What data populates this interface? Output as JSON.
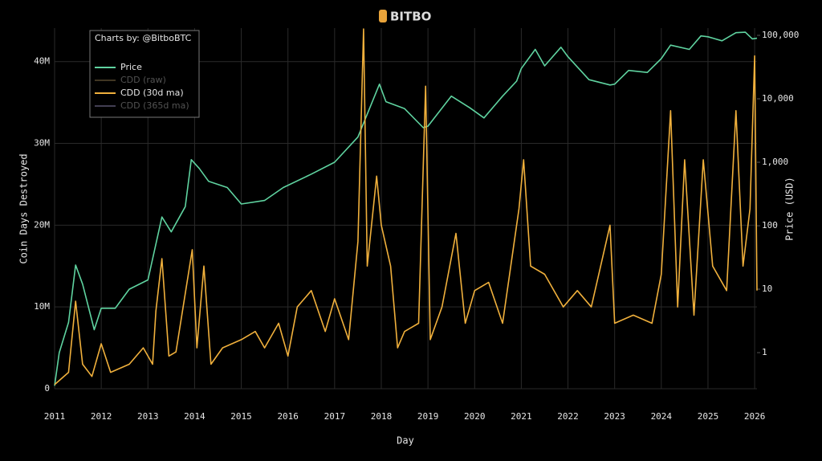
{
  "chart_data": {
    "type": "line",
    "logo": "BITBO",
    "credit": "Charts by: @BitboBTC",
    "xlabel": "Day",
    "ylabel": "Coin Days Destroyed",
    "y2label": "Price (USD)",
    "xlim": [
      2011,
      2026.05
    ],
    "xticks": [
      2011,
      2012,
      2013,
      2014,
      2015,
      2016,
      2017,
      2018,
      2019,
      2020,
      2021,
      2022,
      2023,
      2024,
      2025,
      2026
    ],
    "ylim": [
      0,
      44100000
    ],
    "yticks": [
      0,
      {
        "value": 10000000,
        "label": "10M"
      },
      {
        "value": 20000000,
        "label": "20M"
      },
      {
        "value": 30000000,
        "label": "30M"
      },
      {
        "value": 40000000,
        "label": "40M"
      }
    ],
    "y2lim": [
      0.27,
      130000
    ],
    "y2scale": "log",
    "y2ticks": [
      1,
      10,
      100,
      {
        "value": 1000,
        "label": "1,000"
      },
      {
        "value": 10000,
        "label": "10,000"
      },
      {
        "value": 100000,
        "label": "100,000"
      }
    ],
    "grid": true,
    "legend": "top-left",
    "series": [
      {
        "name": "Price",
        "color": "#5fd3a0",
        "axis": "y2",
        "x": [
          2011.0,
          2011.1,
          2011.3,
          2011.45,
          2011.6,
          2011.85,
          2012.0,
          2012.3,
          2012.6,
          2013.0,
          2013.3,
          2013.5,
          2013.8,
          2013.93,
          2014.1,
          2014.3,
          2014.7,
          2015.0,
          2015.5,
          2015.9,
          2016.5,
          2017.0,
          2017.5,
          2017.96,
          2018.1,
          2018.5,
          2018.9,
          2019.0,
          2019.5,
          2019.9,
          2020.2,
          2020.6,
          2020.9,
          2021.0,
          2021.3,
          2021.5,
          2021.85,
          2022.0,
          2022.45,
          2022.9,
          2023.0,
          2023.3,
          2023.7,
          2024.0,
          2024.2,
          2024.6,
          2024.85,
          2025.0,
          2025.3,
          2025.6,
          2025.8,
          2025.95,
          2026.05
        ],
        "values": [
          0.3,
          1,
          3,
          24,
          12,
          2.3,
          5,
          5,
          10,
          14,
          137,
          80,
          200,
          1100,
          800,
          500,
          400,
          220,
          250,
          400,
          650,
          1000,
          2500,
          17000,
          9000,
          7000,
          3500,
          3700,
          11000,
          7200,
          5000,
          11000,
          19000,
          30000,
          60000,
          33000,
          65000,
          46000,
          20000,
          16500,
          17000,
          28000,
          26000,
          43000,
          70000,
          60000,
          98000,
          95000,
          82000,
          110000,
          112000,
          88000,
          90000
        ]
      },
      {
        "name": "CDD (30d ma)",
        "color": "#f0b03c",
        "axis": "y",
        "x": [
          2011.0,
          2011.3,
          2011.45,
          2011.6,
          2011.8,
          2012.0,
          2012.2,
          2012.6,
          2012.9,
          2013.1,
          2013.17,
          2013.3,
          2013.45,
          2013.6,
          2013.95,
          2014.05,
          2014.2,
          2014.35,
          2014.6,
          2015.0,
          2015.3,
          2015.5,
          2015.8,
          2016.0,
          2016.2,
          2016.5,
          2016.8,
          2017.0,
          2017.3,
          2017.5,
          2017.62,
          2017.7,
          2017.9,
          2018.0,
          2018.2,
          2018.35,
          2018.5,
          2018.8,
          2018.95,
          2019.05,
          2019.3,
          2019.6,
          2019.8,
          2020.0,
          2020.3,
          2020.6,
          2020.95,
          2021.05,
          2021.2,
          2021.5,
          2021.9,
          2022.2,
          2022.5,
          2022.9,
          2023.0,
          2023.4,
          2023.8,
          2024.0,
          2024.2,
          2024.35,
          2024.5,
          2024.7,
          2024.9,
          2025.1,
          2025.4,
          2025.6,
          2025.75,
          2025.9,
          2026.0,
          2026.05
        ],
        "values": [
          500000,
          2000000,
          10700000,
          3000000,
          1500000,
          5500000,
          2000000,
          3000000,
          5000000,
          3000000,
          9500000,
          15900000,
          4000000,
          4500000,
          17000000,
          5000000,
          15000000,
          3000000,
          5000000,
          6000000,
          7000000,
          5000000,
          8000000,
          4000000,
          10000000,
          12000000,
          7000000,
          11000000,
          6000000,
          18000000,
          44000000,
          15000000,
          26000000,
          20000000,
          15000000,
          5000000,
          7000000,
          8000000,
          37000000,
          6000000,
          10000000,
          19000000,
          8000000,
          12000000,
          13000000,
          8000000,
          22000000,
          28000000,
          15000000,
          14000000,
          10000000,
          12000000,
          10000000,
          20000000,
          8000000,
          9000000,
          8000000,
          14000000,
          34000000,
          10000000,
          28000000,
          9000000,
          28000000,
          15000000,
          12000000,
          34000000,
          15000000,
          22000000,
          40700000,
          12000000
        ]
      }
    ],
    "hidden_series": [
      {
        "name": "CDD (raw)",
        "color": "#6b5a3a"
      },
      {
        "name": "CDD (365d ma)",
        "color": "#6e6a8a"
      }
    ]
  }
}
